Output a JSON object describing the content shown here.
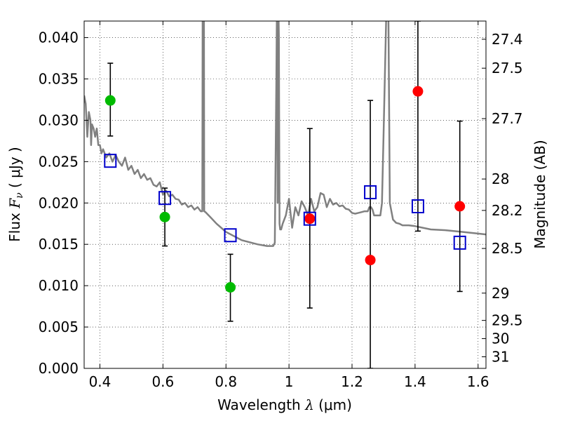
{
  "chart_data": {
    "type": "scatter",
    "xlabel": "Wavelength  λ (μm)",
    "ylabel": "Flux  F_ν  ( μJy )",
    "ylabel_parts": {
      "prefix": "Flux",
      "symbol": "F",
      "subscript": "ν",
      "unit": "( μJy )"
    },
    "xlabel_parts": {
      "text": "Wavelength",
      "symbol": "λ",
      "unit": "(μm)"
    },
    "y2label": "Magnitude (AB)",
    "xlim": [
      0.35,
      1.625
    ],
    "ylim": [
      0.0,
      0.042
    ],
    "x_ticks": [
      0.4,
      0.6,
      0.8,
      1.0,
      1.2,
      1.4,
      1.6
    ],
    "x_tick_labels": [
      "0.4",
      "0.6",
      "0.8",
      "1",
      "1.2",
      "1.4",
      "1.6"
    ],
    "y_ticks": [
      0.0,
      0.005,
      0.01,
      0.015,
      0.02,
      0.025,
      0.03,
      0.035,
      0.04
    ],
    "y_tick_labels": [
      "0.000",
      "0.005",
      "0.010",
      "0.015",
      "0.020",
      "0.025",
      "0.030",
      "0.035",
      "0.040"
    ],
    "y2_ticks": [
      {
        "mag": "27.4",
        "flux": 0.0398
      },
      {
        "mag": "27.5",
        "flux": 0.0363
      },
      {
        "mag": "27.7",
        "flux": 0.0302
      },
      {
        "mag": "28",
        "flux": 0.0229
      },
      {
        "mag": "28.2",
        "flux": 0.0191
      },
      {
        "mag": "28.5",
        "flux": 0.0145
      },
      {
        "mag": "29",
        "flux": 0.0091
      },
      {
        "mag": "29.5",
        "flux": 0.0058
      },
      {
        "mag": "30",
        "flux": 0.0036
      },
      {
        "mag": "31",
        "flux": 0.0014
      }
    ],
    "grid": true,
    "series": [
      {
        "kind": "line",
        "color": "#808080",
        "x": [
          0.35,
          0.355,
          0.36,
          0.365,
          0.37,
          0.372,
          0.375,
          0.38,
          0.385,
          0.39,
          0.395,
          0.4,
          0.405,
          0.41,
          0.42,
          0.43,
          0.44,
          0.45,
          0.46,
          0.47,
          0.48,
          0.49,
          0.5,
          0.51,
          0.52,
          0.53,
          0.54,
          0.55,
          0.56,
          0.57,
          0.58,
          0.59,
          0.6,
          0.61,
          0.62,
          0.63,
          0.64,
          0.65,
          0.66,
          0.67,
          0.68,
          0.69,
          0.7,
          0.71,
          0.72,
          0.725,
          0.726,
          0.73,
          0.731,
          0.735,
          0.75,
          0.77,
          0.8,
          0.85,
          0.9,
          0.93,
          0.95,
          0.955,
          0.96,
          0.962,
          0.964,
          0.966,
          0.968,
          0.97,
          0.972,
          0.975,
          0.98,
          0.99,
          1.0,
          1.01,
          1.02,
          1.03,
          1.04,
          1.05,
          1.06,
          1.07,
          1.08,
          1.09,
          1.1,
          1.11,
          1.12,
          1.13,
          1.14,
          1.15,
          1.16,
          1.17,
          1.18,
          1.19,
          1.2,
          1.21,
          1.22,
          1.23,
          1.24,
          1.25,
          1.255,
          1.26,
          1.265,
          1.27,
          1.28,
          1.29,
          1.295,
          1.3,
          1.31,
          1.315,
          1.32,
          1.33,
          1.34,
          1.35,
          1.36,
          1.38,
          1.4,
          1.45,
          1.5,
          1.55,
          1.6,
          1.625
        ],
        "y": [
          0.033,
          0.032,
          0.028,
          0.031,
          0.03,
          0.027,
          0.0295,
          0.029,
          0.028,
          0.029,
          0.027,
          0.027,
          0.026,
          0.0265,
          0.0255,
          0.026,
          0.025,
          0.0258,
          0.025,
          0.0245,
          0.0255,
          0.024,
          0.0245,
          0.0235,
          0.024,
          0.023,
          0.0235,
          0.0228,
          0.023,
          0.0222,
          0.022,
          0.0225,
          0.021,
          0.0215,
          0.0208,
          0.021,
          0.0205,
          0.0204,
          0.0198,
          0.02,
          0.0195,
          0.0197,
          0.0192,
          0.0195,
          0.019,
          0.019,
          0.045,
          0.045,
          0.019,
          0.0189,
          0.0183,
          0.0175,
          0.0165,
          0.0155,
          0.015,
          0.0148,
          0.0148,
          0.0152,
          0.035,
          0.045,
          0.02,
          0.045,
          0.04,
          0.0175,
          0.0168,
          0.0168,
          0.0175,
          0.0185,
          0.0205,
          0.017,
          0.0195,
          0.0185,
          0.0202,
          0.0195,
          0.0185,
          0.0205,
          0.019,
          0.0195,
          0.0212,
          0.021,
          0.0195,
          0.0205,
          0.0198,
          0.02,
          0.0196,
          0.0197,
          0.0193,
          0.0192,
          0.0188,
          0.0187,
          0.0188,
          0.0189,
          0.019,
          0.019,
          0.0195,
          0.0195,
          0.0192,
          0.0185,
          0.0185,
          0.0185,
          0.02,
          0.028,
          0.045,
          0.045,
          0.02,
          0.018,
          0.0176,
          0.0175,
          0.0173,
          0.0173,
          0.0172,
          0.0168,
          0.0167,
          0.0165,
          0.0163,
          0.0162
        ]
      },
      {
        "kind": "points",
        "marker": "circle",
        "color": "#00bb00",
        "x": [
          0.433,
          0.606,
          0.814
        ],
        "y": [
          0.0324,
          0.0183,
          0.0098
        ],
        "yerr_low": [
          0.0281,
          0.0148,
          0.0057
        ],
        "yerr_high": [
          0.0369,
          0.0218,
          0.0138
        ]
      },
      {
        "kind": "points",
        "marker": "circle",
        "color": "#ff0000",
        "x": [
          1.066,
          1.258,
          1.409,
          1.542
        ],
        "y": [
          0.0181,
          0.0131,
          0.0335,
          0.0196
        ],
        "yerr_low": [
          0.0073,
          0.0,
          0.0166,
          0.0093
        ],
        "yerr_high": [
          0.029,
          0.0324,
          0.042,
          0.0299
        ]
      },
      {
        "kind": "points",
        "marker": "square",
        "color": "#0000cc",
        "x": [
          0.433,
          0.606,
          0.814,
          1.066,
          1.258,
          1.409,
          1.542
        ],
        "y": [
          0.0251,
          0.0206,
          0.0161,
          0.0181,
          0.0213,
          0.0196,
          0.0152
        ]
      }
    ]
  }
}
